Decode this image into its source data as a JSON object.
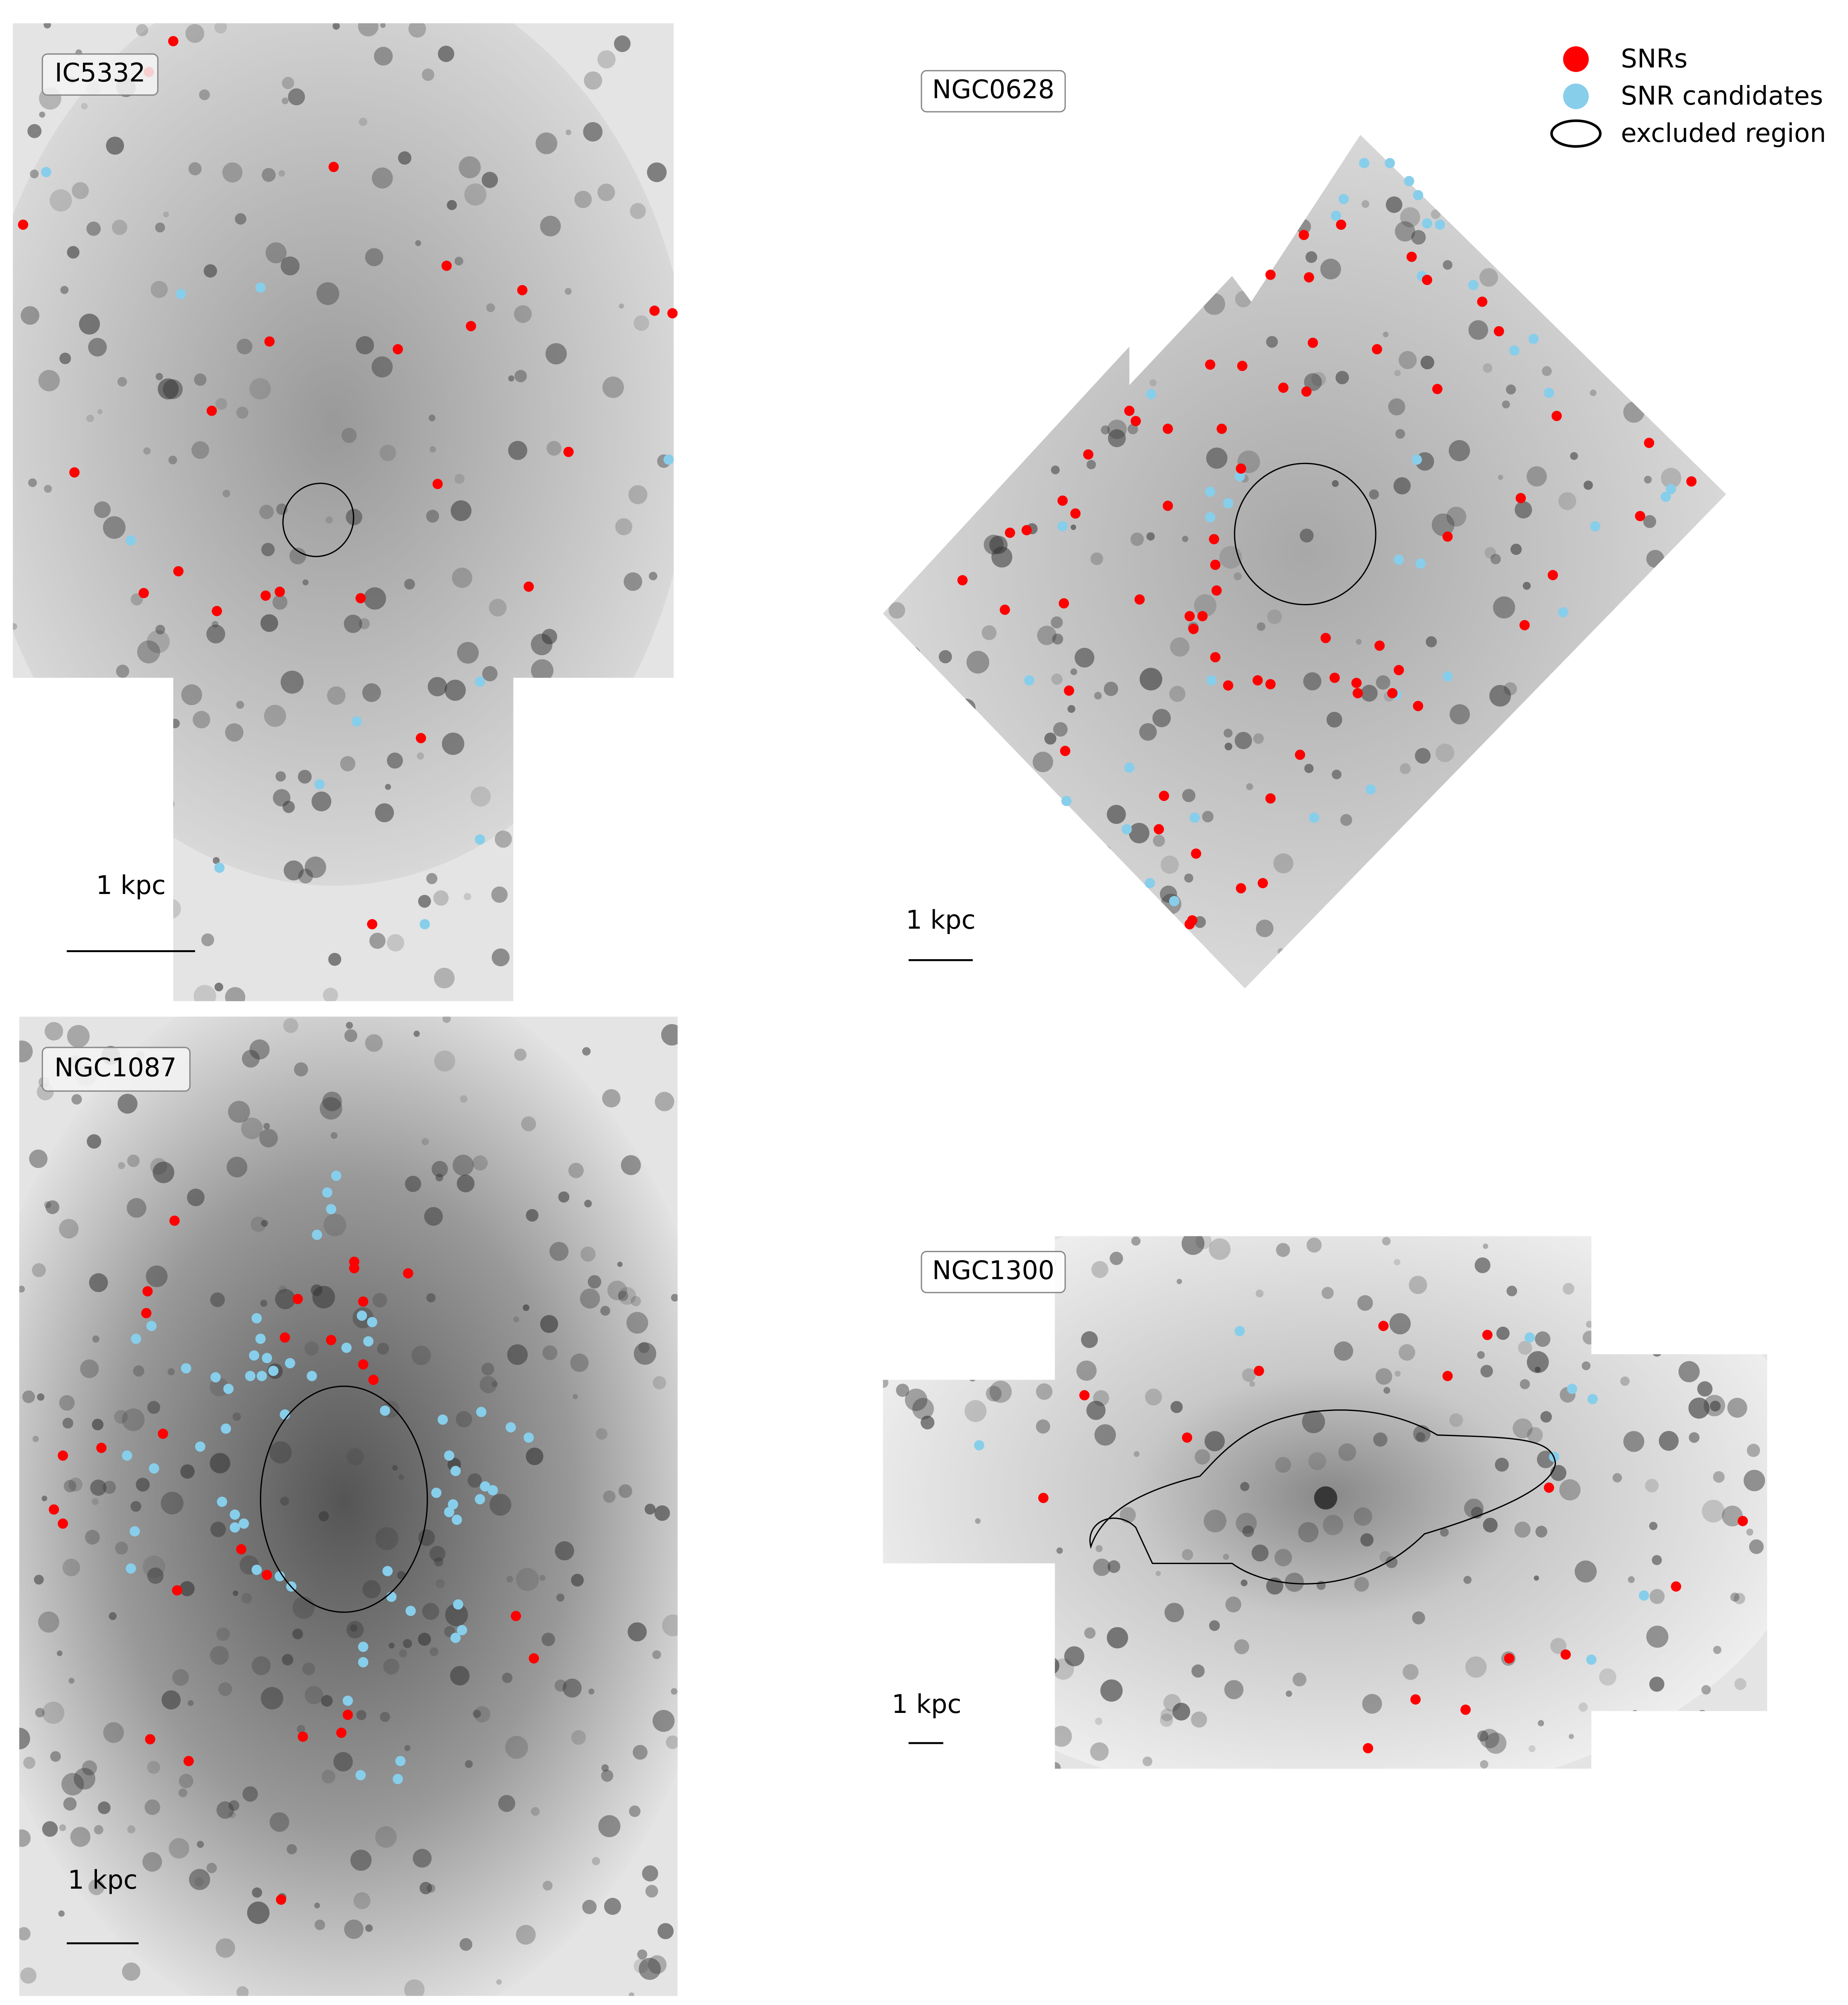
{
  "panels": [
    {
      "label": "IC5332",
      "scale_label": "1 kpc"
    },
    {
      "label": "NGC0628",
      "scale_label": "1 kpc"
    },
    {
      "label": "NGC1087",
      "scale_label": "1 kpc"
    },
    {
      "label": "NGC1300",
      "scale_label": "1 kpc"
    }
  ],
  "legend": [
    {
      "label": "SNRs",
      "color": "#ff0000"
    },
    {
      "label": "SNR candidates",
      "color": "#87ceeb"
    },
    {
      "label": "excluded region"
    }
  ]
}
